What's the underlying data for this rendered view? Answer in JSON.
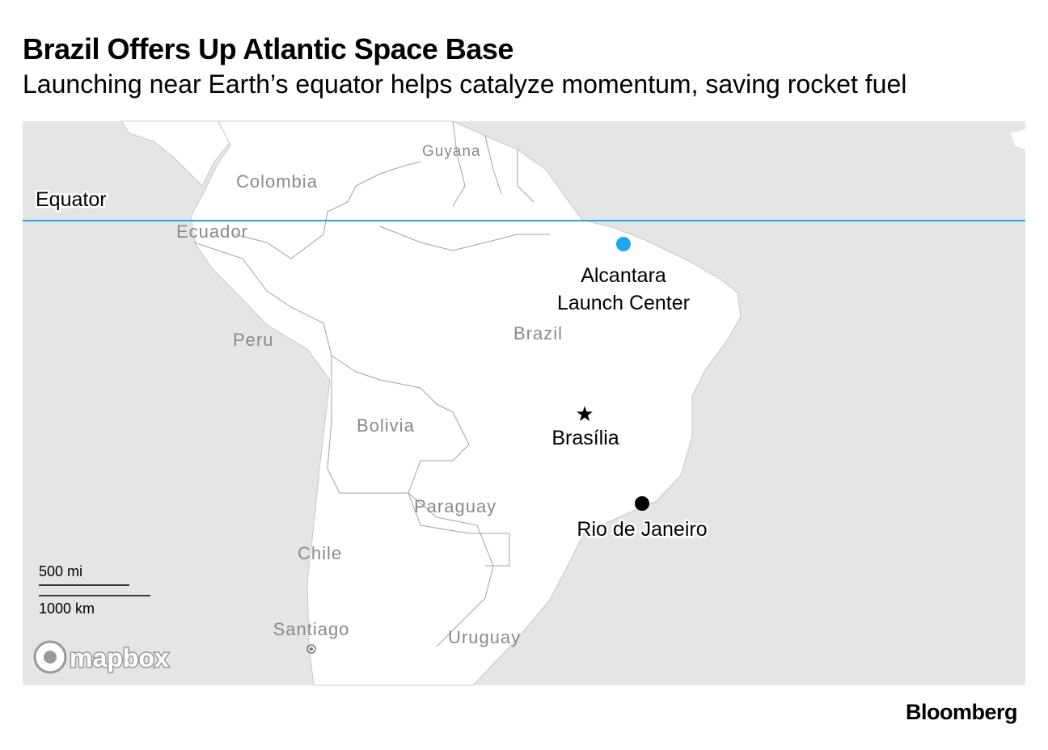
{
  "header": {
    "title": "Brazil Offers Up Atlantic Space Base",
    "subtitle": "Launching near Earth’s equator helps catalyze momentum, saving rocket fuel"
  },
  "map": {
    "equator_label": "Equator",
    "countries": [
      "Colombia",
      "Guyana",
      "Ecuador",
      "Peru",
      "Brazil",
      "Bolivia",
      "Paraguay",
      "Chile",
      "Uruguay"
    ],
    "launch_site": {
      "label_lines": [
        "Alcantara",
        "Launch Center"
      ]
    },
    "cities": [
      "Brasília",
      "Rio de Janeiro",
      "Santiago"
    ],
    "scale": [
      "500 mi",
      "1000 km"
    ],
    "attribution": "mapbox"
  },
  "footer": {
    "brand": "Bloomberg"
  }
}
